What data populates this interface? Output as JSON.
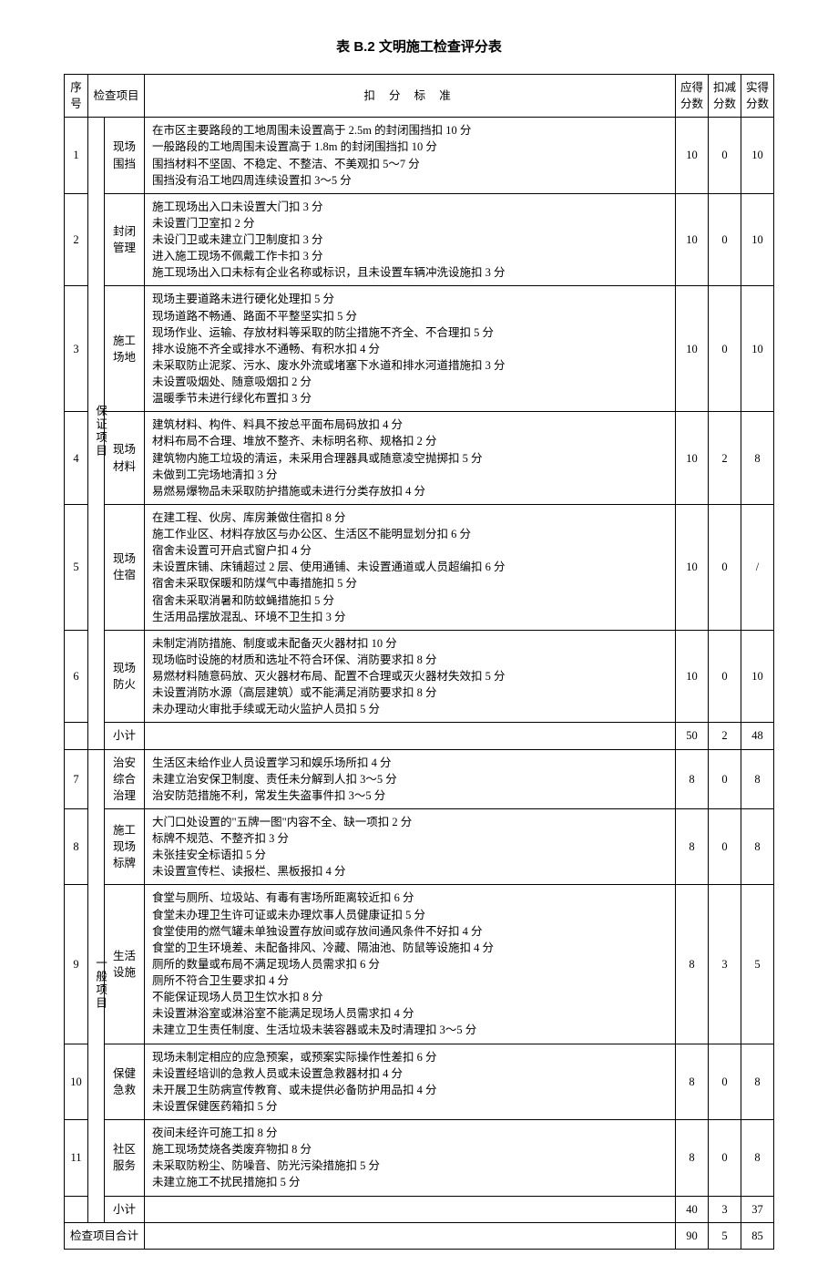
{
  "title": "表 B.2 文明施工检查评分表",
  "headers": {
    "seq": "序号",
    "checkItem": "检查项目",
    "criteria": "扣 分 标 准",
    "maxScore": "应得分数",
    "deduct": "扣减分数",
    "actual": "实得分数"
  },
  "group1": {
    "category": "保证项目",
    "rows": [
      {
        "seq": "1",
        "item": "现场围挡",
        "criteria": [
          "在市区主要路段的工地周围未设置高于 2.5m 的封闭围挡扣 10 分",
          "一般路段的工地周围未设置高于 1.8m 的封闭围挡扣 10 分",
          "围挡材料不坚固、不稳定、不整洁、不美观扣 5～7 分",
          "围挡没有沿工地四周连续设置扣 3～5 分"
        ],
        "max": "10",
        "deduct": "0",
        "actual": "10"
      },
      {
        "seq": "2",
        "item": "封闭管理",
        "criteria": [
          "施工现场出入口未设置大门扣 3 分",
          "未设置门卫室扣 2 分",
          "未设门卫或未建立门卫制度扣 3 分",
          "进入施工现场不佩戴工作卡扣 3 分",
          "施工现场出入口未标有企业名称或标识，且未设置车辆冲洗设施扣 3 分"
        ],
        "max": "10",
        "deduct": "0",
        "actual": "10"
      },
      {
        "seq": "3",
        "item": "施工场地",
        "criteria": [
          "现场主要道路未进行硬化处理扣 5 分",
          "现场道路不畅通、路面不平整坚实扣 5 分",
          "现场作业、运输、存放材料等采取的防尘措施不齐全、不合理扣 5 分",
          "排水设施不齐全或排水不通畅、有积水扣 4 分",
          "未采取防止泥浆、污水、废水外流或堵塞下水道和排水河道措施扣 3 分",
          "未设置吸烟处、随意吸烟扣 2 分",
          "温暖季节未进行绿化布置扣 3 分"
        ],
        "max": "10",
        "deduct": "0",
        "actual": "10"
      },
      {
        "seq": "4",
        "item": "现场材料",
        "criteria": [
          "建筑材料、构件、料具不按总平面布局码放扣 4 分",
          "材料布局不合理、堆放不整齐、未标明名称、规格扣 2 分",
          "建筑物内施工垃圾的清运，未采用合理器具或随意凌空抛掷扣 5 分",
          "未做到工完场地清扣 3 分",
          "易燃易爆物品未采取防护措施或未进行分类存放扣 4 分"
        ],
        "max": "10",
        "deduct": "2",
        "actual": "8"
      },
      {
        "seq": "5",
        "item": "现场住宿",
        "criteria": [
          "在建工程、伙房、库房兼做住宿扣 8 分",
          "施工作业区、材料存放区与办公区、生活区不能明显划分扣 6 分",
          "宿舍未设置可开启式窗户扣 4 分",
          "未设置床铺、床铺超过 2 层、使用通铺、未设置通道或人员超编扣 6 分",
          "宿舍未采取保暖和防煤气中毒措施扣 5 分",
          "宿舍未采取消暑和防蚊蝇措施扣 5 分",
          "生活用品摆放混乱、环境不卫生扣 3 分"
        ],
        "max": "10",
        "deduct": "0",
        "actual": "/"
      },
      {
        "seq": "6",
        "item": "现场防火",
        "criteria": [
          "未制定消防措施、制度或未配备灭火器材扣 10 分",
          "现场临时设施的材质和选址不符合环保、消防要求扣 8 分",
          "易燃材料随意码放、灭火器材布局、配置不合理或灭火器材失效扣 5 分",
          "未设置消防水源（高层建筑）或不能满足消防要求扣 8 分",
          "未办理动火审批手续或无动火监护人员扣 5 分"
        ],
        "max": "10",
        "deduct": "0",
        "actual": "10"
      }
    ],
    "subtotal": {
      "label": "小计",
      "max": "50",
      "deduct": "2",
      "actual": "48"
    }
  },
  "group2": {
    "category": "一般项目",
    "rows": [
      {
        "seq": "7",
        "item": "治安综合治理",
        "criteria": [
          "生活区未给作业人员设置学习和娱乐场所扣 4 分",
          "未建立治安保卫制度、责任未分解到人扣 3～5 分",
          "治安防范措施不利，常发生失盗事件扣 3～5 分"
        ],
        "max": "8",
        "deduct": "0",
        "actual": "8"
      },
      {
        "seq": "8",
        "item": "施工现场标牌",
        "criteria": [
          "大门口处设置的\"五牌一图\"内容不全、缺一项扣 2 分",
          "标牌不规范、不整齐扣 3 分",
          "未张挂安全标语扣 5 分",
          "未设置宣传栏、读报栏、黑板报扣 4 分"
        ],
        "max": "8",
        "deduct": "0",
        "actual": "8"
      },
      {
        "seq": "9",
        "item": "生活设施",
        "criteria": [
          "食堂与厕所、垃圾站、有毒有害场所距离较近扣 6 分",
          "食堂未办理卫生许可证或未办理炊事人员健康证扣 5 分",
          "食堂使用的燃气罐未单独设置存放间或存放间通风条件不好扣 4 分",
          "食堂的卫生环境差、未配备排风、冷藏、隔油池、防鼠等设施扣 4 分",
          "厕所的数量或布局不满足现场人员需求扣 6 分",
          "厕所不符合卫生要求扣 4 分",
          "不能保证现场人员卫生饮水扣 8 分",
          "未设置淋浴室或淋浴室不能满足现场人员需求扣 4 分",
          "未建立卫生责任制度、生活垃圾未装容器或未及时清理扣 3～5 分"
        ],
        "max": "8",
        "deduct": "3",
        "actual": "5"
      },
      {
        "seq": "10",
        "item": "保健急救",
        "criteria": [
          "现场未制定相应的应急预案，或预案实际操作性差扣 6 分",
          "未设置经培训的急救人员或未设置急救器材扣 4 分",
          "未开展卫生防病宣传教育、或未提供必备防护用品扣 4 分",
          "未设置保健医药箱扣 5 分"
        ],
        "max": "8",
        "deduct": "0",
        "actual": "8"
      },
      {
        "seq": "11",
        "item": "社区服务",
        "criteria": [
          "夜间未经许可施工扣 8 分",
          "施工现场焚烧各类废弃物扣 8 分",
          "未采取防粉尘、防噪音、防光污染措施扣 5 分",
          "未建立施工不扰民措施扣 5 分"
        ],
        "max": "8",
        "deduct": "0",
        "actual": "8"
      }
    ],
    "subtotal": {
      "label": "小计",
      "max": "40",
      "deduct": "3",
      "actual": "37"
    }
  },
  "total": {
    "label": "检查项目合计",
    "max": "90",
    "deduct": "5",
    "actual": "85"
  }
}
